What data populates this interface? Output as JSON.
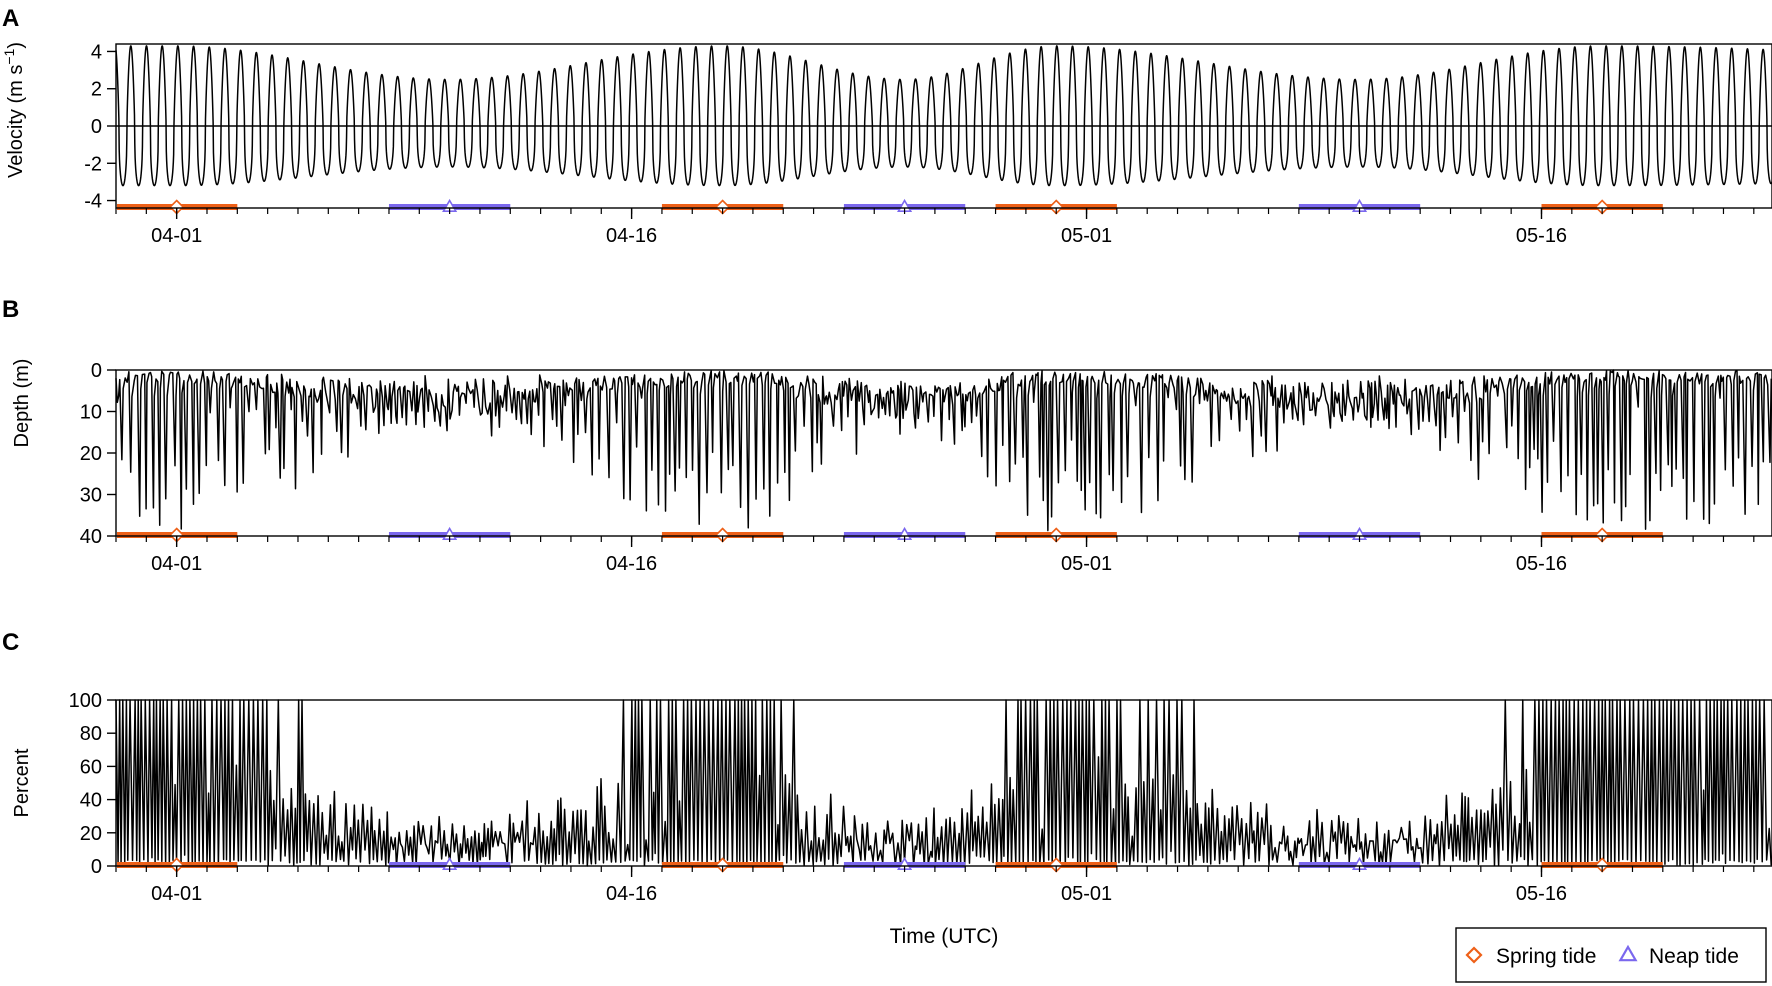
{
  "figure": {
    "legend": {
      "spring_label": "Spring tide",
      "neap_label": "Neap tide",
      "spring_symbol": "diamond",
      "neap_symbol": "triangle"
    },
    "colors": {
      "spring": "#ee6018",
      "neap": "#7b68ee",
      "trace": "#000000",
      "axis": "#000000"
    },
    "x_axis": {
      "label": "Time (UTC)",
      "range_days": [
        "03-30",
        "05-24"
      ],
      "major_ticks": [
        {
          "date": "04-01",
          "label": "04-01"
        },
        {
          "date": "04-16",
          "label": "04-16"
        },
        {
          "date": "05-01",
          "label": "05-01"
        },
        {
          "date": "05-16",
          "label": "05-16"
        }
      ],
      "minor_tick_interval_days": 1
    },
    "tidal_phases": [
      {
        "type": "spring",
        "start": "03-30",
        "center": "04-01",
        "end": "04-03"
      },
      {
        "type": "neap",
        "start": "04-08",
        "center": "04-10",
        "end": "04-12"
      },
      {
        "type": "spring",
        "start": "04-17",
        "center": "04-19",
        "end": "04-21"
      },
      {
        "type": "neap",
        "start": "04-23",
        "center": "04-25",
        "end": "04-27"
      },
      {
        "type": "spring",
        "start": "04-28",
        "center": "04-30",
        "end": "05-02"
      },
      {
        "type": "neap",
        "start": "05-08",
        "center": "05-10",
        "end": "05-12"
      },
      {
        "type": "spring",
        "start": "05-16",
        "center": "05-18",
        "end": "05-20"
      }
    ]
  },
  "chart_data": [
    {
      "type": "line",
      "panel": "A",
      "title": "",
      "ylabel_main": "Velocity (m s",
      "ylabel_sup": "−1",
      "ylabel_end": ")",
      "ylim": [
        -4.4,
        4.4
      ],
      "y_ticks": [
        4,
        2,
        0,
        -2,
        -4
      ],
      "y_tick_labels": [
        "4",
        "2",
        "0",
        "-2",
        "-4"
      ],
      "y_reversed": false,
      "zero_line": true,
      "series": [
        {
          "signal": "semidiurnal tidal velocity",
          "period_hours": 12.42,
          "flood_max_spring": 4.3,
          "flood_max_neap": 2.5,
          "ebb_min_spring": -3.2,
          "ebb_min_neap": -2.2
        }
      ]
    },
    {
      "type": "line",
      "panel": "B",
      "title": "",
      "ylabel": "Depth (m)",
      "ylim": [
        0,
        40
      ],
      "y_ticks": [
        0,
        10,
        20,
        30,
        40
      ],
      "y_tick_labels": [
        "0",
        "10",
        "20",
        "30",
        "40"
      ],
      "y_reversed": true,
      "series": [
        {
          "signal": "tag depth",
          "max_depth_spring": 39,
          "max_depth_neap": 16
        }
      ]
    },
    {
      "type": "line",
      "panel": "C",
      "title": "",
      "ylabel": "Percent",
      "ylim": [
        0,
        100
      ],
      "y_ticks": [
        0,
        20,
        40,
        60,
        80,
        100
      ],
      "y_tick_labels": [
        "0",
        "20",
        "40",
        "60",
        "80",
        "100"
      ],
      "y_reversed": false,
      "series": [
        {
          "signal": "percent",
          "peak_spring": 100,
          "peak_neap": 40
        }
      ]
    }
  ]
}
